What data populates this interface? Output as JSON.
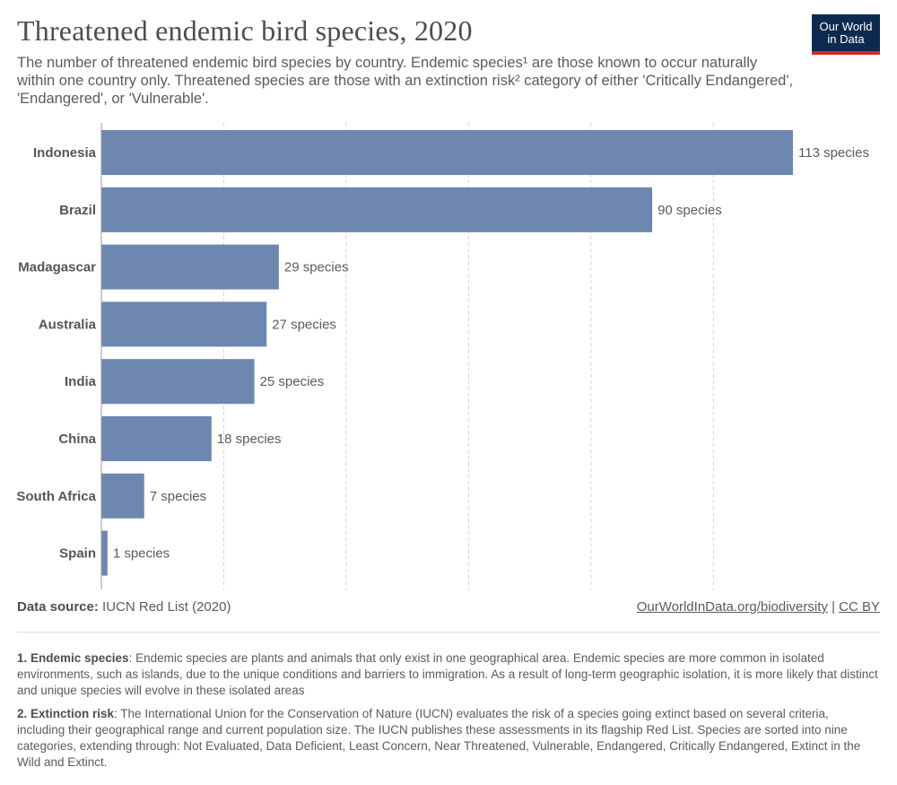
{
  "header": {
    "title": "Threatened endemic bird species, 2020",
    "subtitle": "The number of threatened endemic bird species by country. Endemic species¹ are those known to occur naturally within one country only. Threatened species are those with an extinction risk² category of either 'Critically Endangered', 'Endangered', or 'Vulnerable'.",
    "logo_line1": "Our World",
    "logo_line2": "in Data"
  },
  "footer": {
    "source_label": "Data source:",
    "source_text": "IUCN Red List (2020)",
    "link": "OurWorldInData.org/biodiversity",
    "separator": "|",
    "license": "CC BY"
  },
  "notes": [
    {
      "term": "1. Endemic species",
      "text": ": Endemic species are plants and animals that only exist in one geographical area. Endemic species are more common in isolated environments, such as islands, due to the unique conditions and barriers to immigration. As a result of long-term geographic isolation, it is more likely that distinct and unique species will evolve in these isolated areas"
    },
    {
      "term": "2. Extinction risk",
      "text": ": The International Union for the Conservation of Nature (IUCN) evaluates the risk of a species going extinct based on several criteria, including their geographical range and current population size. The IUCN publishes these assessments in its flagship Red List. Species are sorted into nine categories, extending through: Not Evaluated, Data Deficient, Least Concern, Near Threatened, Vulnerable, Endangered, Critically Endangered, Extinct in the Wild and Extinct."
    }
  ],
  "colors": {
    "bar": "#6d87b0",
    "grid": "#d5d5d5",
    "logo_bg": "#0d2b4f",
    "logo_accent": "#d42b21"
  },
  "chart_data": {
    "type": "bar",
    "orientation": "horizontal",
    "categories": [
      "Indonesia",
      "Brazil",
      "Madagascar",
      "Australia",
      "India",
      "China",
      "South Africa",
      "Spain"
    ],
    "values": [
      113,
      90,
      29,
      27,
      25,
      18,
      7,
      1
    ],
    "value_labels": [
      "113 species",
      "90 species",
      "29 species",
      "27 species",
      "25 species",
      "18 species",
      "7 species",
      "1 species"
    ],
    "xlim": [
      0,
      113
    ],
    "grid": true,
    "gridlines": [
      20,
      40,
      60,
      80,
      100
    ]
  }
}
